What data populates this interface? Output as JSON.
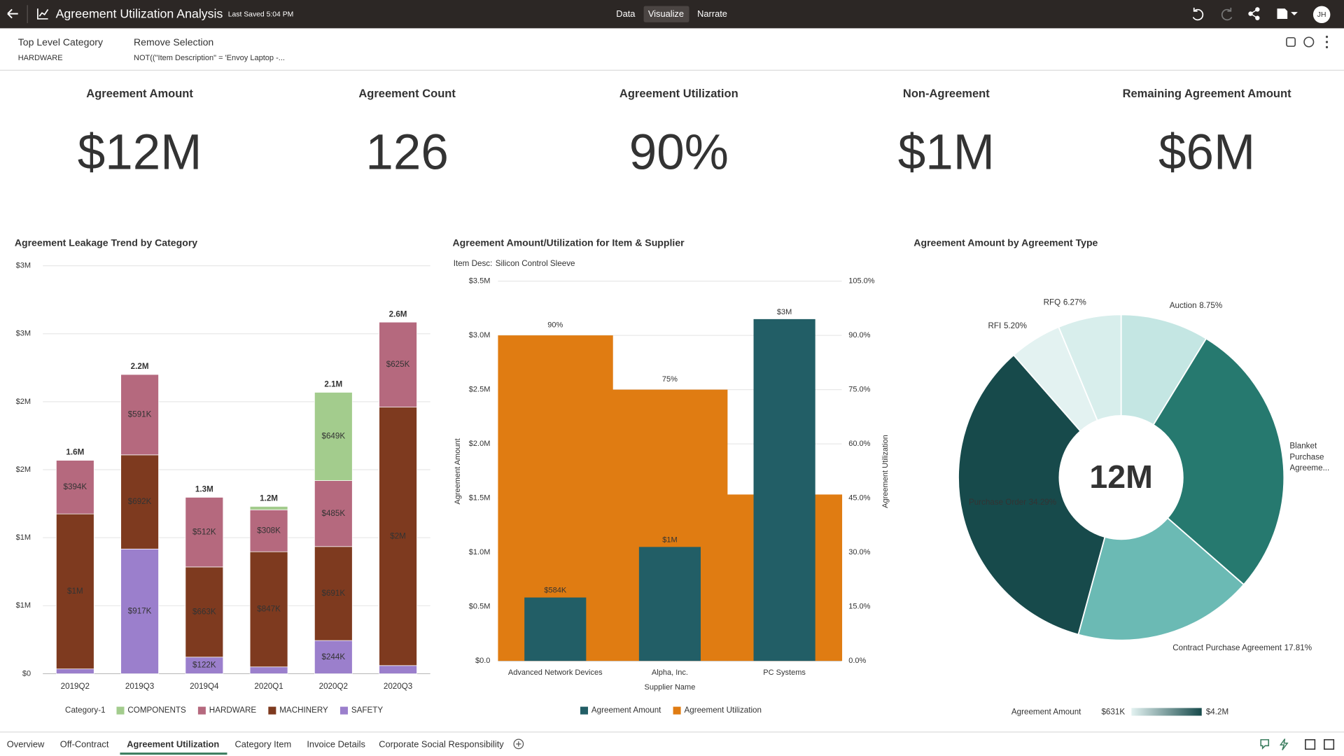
{
  "header": {
    "title": "Agreement Utilization Analysis",
    "saved": "Last Saved 5:04 PM",
    "tabs": [
      "Data",
      "Visualize",
      "Narrate"
    ],
    "user": "JH"
  },
  "filters": [
    {
      "label": "Top Level Category",
      "value": "HARDWARE"
    },
    {
      "label": "Remove Selection",
      "value": "NOT((\"Item Description\" = 'Envoy Laptop -..."
    }
  ],
  "kpis": [
    {
      "label": "Agreement Amount",
      "value": "$12M"
    },
    {
      "label": "Agreement Count",
      "value": "126"
    },
    {
      "label": "Agreement Utilization",
      "value": "90%"
    },
    {
      "label": "Non-Agreement",
      "value": "$1M"
    },
    {
      "label": "Remaining Agreement Amount",
      "value": "$6M"
    }
  ],
  "chart_data": [
    {
      "type": "bar",
      "stacked": true,
      "title": "Agreement Leakage Trend by Category",
      "categories": [
        "2019Q2",
        "2019Q3",
        "2019Q4",
        "2020Q1",
        "2020Q2",
        "2020Q3"
      ],
      "series": [
        {
          "name": "COMPONENTS",
          "color": "#a3cc8d",
          "values": [
            null,
            null,
            null,
            25000,
            649000,
            null
          ],
          "value_labels": [
            null,
            null,
            null,
            null,
            "$649K",
            null
          ]
        },
        {
          "name": "HARDWARE",
          "color": "#b5697e",
          "values": [
            394000,
            591000,
            512000,
            308000,
            485000,
            625000
          ],
          "value_labels": [
            "$394K",
            "$591K",
            "$512K",
            "$308K",
            "$485K",
            "$625K"
          ]
        },
        {
          "name": "MACHINERY",
          "color": "#7e3a1f",
          "values": [
            1140000,
            692000,
            663000,
            847000,
            691000,
            1900000
          ],
          "value_labels": [
            "$1M",
            "$692K",
            "$663K",
            "$847K",
            "$691K",
            "$2M"
          ]
        },
        {
          "name": "SAFETY",
          "color": "#9b7fcc",
          "values": [
            35000,
            917000,
            122000,
            50000,
            244000,
            60000
          ],
          "value_labels": [
            null,
            "$917K",
            "$122K",
            null,
            "$244K",
            null
          ]
        }
      ],
      "total_labels": [
        "1.6M",
        "2.2M",
        "1.3M",
        "1.2M",
        "2.1M",
        "2.6M"
      ],
      "legend_title": "Category-1",
      "ylim": [
        0,
        3000000
      ],
      "yticks": [
        {
          "value": 0,
          "label": "$0"
        },
        {
          "value": 500000,
          "label": "$1M"
        },
        {
          "value": 1000000,
          "label": "$1M"
        },
        {
          "value": 1500000,
          "label": "$2M"
        },
        {
          "value": 2000000,
          "label": "$2M"
        },
        {
          "value": 2500000,
          "label": "$3M"
        },
        {
          "value": 3000000,
          "label": "$3M"
        }
      ],
      "grid": true
    },
    {
      "type": "combo",
      "title": "Agreement Amount/Utilization for Item & Supplier",
      "filter_label": "Item Desc:",
      "filter_value": "Silicon Control Sleeve",
      "categories": [
        "Advanced Network Devices",
        "Alpha, Inc.",
        "PC Systems"
      ],
      "xlabel": "Supplier Name",
      "ylabel": "Agreement Amount",
      "y2label": "Agreement Utilization",
      "series": [
        {
          "name": "Agreement Amount",
          "type": "bar",
          "color": "#225e66",
          "values": [
            584000,
            1050000,
            3150000
          ],
          "value_labels": [
            "$584K",
            "$1M",
            "$3M"
          ]
        },
        {
          "name": "Agreement Utilization",
          "type": "step-area",
          "axis": "y2",
          "color": "#e07c12",
          "values": [
            90,
            75,
            46
          ],
          "value_labels": [
            "90%",
            "75%",
            null
          ]
        }
      ],
      "ylim": [
        0,
        3500000
      ],
      "yticks": [
        {
          "value": 0,
          "label": "$0.0"
        },
        {
          "value": 500000,
          "label": "$0.5M"
        },
        {
          "value": 1000000,
          "label": "$1.0M"
        },
        {
          "value": 1500000,
          "label": "$1.5M"
        },
        {
          "value": 2000000,
          "label": "$2.0M"
        },
        {
          "value": 2500000,
          "label": "$2.5M"
        },
        {
          "value": 3000000,
          "label": "$3.0M"
        },
        {
          "value": 3500000,
          "label": "$3.5M"
        }
      ],
      "y2lim": [
        0,
        105
      ],
      "y2ticks": [
        {
          "value": 0,
          "label": "0.0%"
        },
        {
          "value": 15,
          "label": "15.0%"
        },
        {
          "value": 30,
          "label": "30.0%"
        },
        {
          "value": 45,
          "label": "45.0%"
        },
        {
          "value": 60,
          "label": "60.0%"
        },
        {
          "value": 75,
          "label": "75.0%"
        },
        {
          "value": 90,
          "label": "90.0%"
        },
        {
          "value": 105,
          "label": "105.0%"
        }
      ],
      "grid": true
    },
    {
      "type": "donut",
      "title": "Agreement Amount by Agreement Type",
      "center_label": "12M",
      "categories": [
        "Auction",
        "Blanket Purchase Agreeme...",
        "Contract Purchase Agreement",
        "Purchase Order",
        "RFI",
        "RFQ"
      ],
      "values": [
        8.75,
        27.68,
        17.81,
        34.29,
        5.2,
        6.27
      ],
      "value_labels": [
        "8.75%",
        null,
        "17.81%",
        "34.29%",
        "5.20%",
        "6.27%"
      ],
      "colors": [
        "#c4e6e3",
        "#26796f",
        "#6bbab4",
        "#174a4b",
        "#e3f2f1",
        "#d8eeec"
      ],
      "color_scale": {
        "title": "Agreement Amount",
        "min_label": "$631K",
        "max_label": "$4.2M"
      }
    }
  ],
  "footer": {
    "tabs": [
      "Overview",
      "Off-Contract",
      "Agreement Utilization",
      "Category Item",
      "Invoice Details",
      "Corporate Social Responsibility"
    ]
  }
}
